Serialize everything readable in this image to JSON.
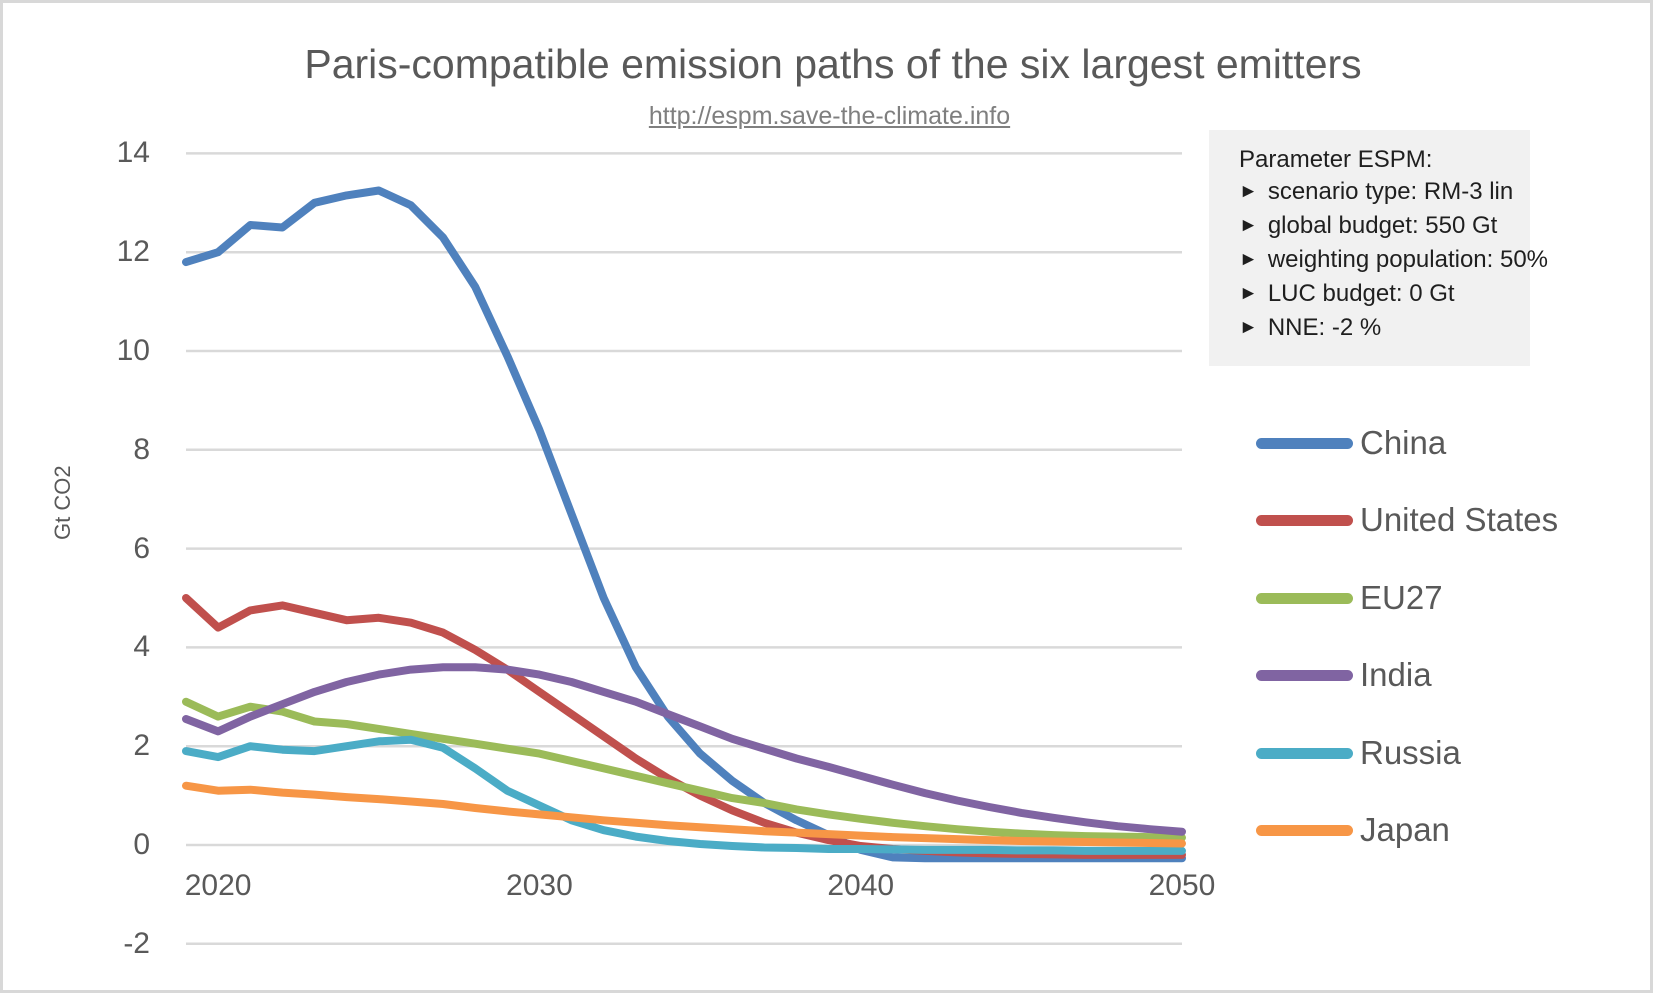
{
  "window": {
    "background": "#ffffff",
    "border_color": "#d8d8d8",
    "text_color": "#595959"
  },
  "header": {
    "title": "Paris-compatible emission paths of the six largest emitters",
    "subtitle_link": "http://espm.save-the-climate.info"
  },
  "parameter_box": {
    "background": "#f1f1f1",
    "bullet": "►",
    "title": "Parameter ESPM:",
    "items": [
      "scenario type: RM-3 lin",
      "global budget: 550 Gt",
      "weighting population: 50%",
      "LUC budget: 0 Gt",
      "NNE: -2 %"
    ]
  },
  "chart_data": {
    "type": "line",
    "title": "Paris-compatible emission paths of the six largest emitters",
    "xlabel": "",
    "ylabel": "Gt CO2",
    "x": [
      2019,
      2020,
      2021,
      2022,
      2023,
      2024,
      2025,
      2026,
      2027,
      2028,
      2029,
      2030,
      2031,
      2032,
      2033,
      2034,
      2035,
      2036,
      2037,
      2038,
      2039,
      2040,
      2041,
      2042,
      2043,
      2044,
      2045,
      2046,
      2047,
      2048,
      2049,
      2050
    ],
    "x_ticks": [
      2020,
      2030,
      2040,
      2050
    ],
    "y_ticks": [
      14,
      12,
      10,
      8,
      6,
      4,
      2,
      0,
      -2
    ],
    "ylim": [
      -2,
      14
    ],
    "xlim": [
      2019,
      2050
    ],
    "grid": "horizontal",
    "gridline_color": "#d9d9d9",
    "legend_position": "right",
    "series": [
      {
        "name": "China",
        "color": "#4F81BD",
        "values": [
          11.8,
          12.0,
          12.55,
          12.5,
          13.0,
          13.15,
          13.25,
          12.95,
          12.3,
          11.3,
          9.9,
          8.4,
          6.7,
          5.0,
          3.6,
          2.6,
          1.85,
          1.3,
          0.85,
          0.5,
          0.2,
          -0.1,
          -0.25,
          -0.27,
          -0.27,
          -0.27,
          -0.27,
          -0.27,
          -0.27,
          -0.27,
          -0.27,
          -0.27
        ]
      },
      {
        "name": "United States",
        "color": "#C0504D",
        "values": [
          5.0,
          4.4,
          4.75,
          4.85,
          4.7,
          4.55,
          4.6,
          4.5,
          4.3,
          3.95,
          3.55,
          3.1,
          2.65,
          2.2,
          1.75,
          1.35,
          1.0,
          0.7,
          0.45,
          0.25,
          0.1,
          -0.02,
          -0.08,
          -0.12,
          -0.15,
          -0.17,
          -0.18,
          -0.19,
          -0.2,
          -0.2,
          -0.2,
          -0.2
        ]
      },
      {
        "name": "EU27",
        "color": "#9BBB59",
        "values": [
          2.9,
          2.6,
          2.8,
          2.7,
          2.5,
          2.45,
          2.35,
          2.25,
          2.15,
          2.05,
          1.95,
          1.85,
          1.7,
          1.55,
          1.4,
          1.25,
          1.1,
          0.95,
          0.85,
          0.72,
          0.62,
          0.53,
          0.45,
          0.38,
          0.32,
          0.27,
          0.23,
          0.2,
          0.18,
          0.17,
          0.16,
          0.15
        ]
      },
      {
        "name": "India",
        "color": "#8064A2",
        "values": [
          2.55,
          2.3,
          2.6,
          2.85,
          3.1,
          3.3,
          3.45,
          3.55,
          3.6,
          3.6,
          3.55,
          3.45,
          3.3,
          3.1,
          2.9,
          2.65,
          2.4,
          2.15,
          1.95,
          1.75,
          1.58,
          1.4,
          1.22,
          1.05,
          0.9,
          0.77,
          0.65,
          0.55,
          0.46,
          0.38,
          0.32,
          0.27
        ]
      },
      {
        "name": "Russia",
        "color": "#4BACC6",
        "values": [
          1.9,
          1.78,
          2.0,
          1.93,
          1.9,
          2.0,
          2.1,
          2.13,
          1.97,
          1.55,
          1.1,
          0.8,
          0.5,
          0.3,
          0.17,
          0.08,
          0.02,
          -0.02,
          -0.05,
          -0.06,
          -0.08,
          -0.08,
          -0.09,
          -0.1,
          -0.1,
          -0.1,
          -0.11,
          -0.11,
          -0.12,
          -0.12,
          -0.12,
          -0.12
        ]
      },
      {
        "name": "Japan",
        "color": "#F79646",
        "values": [
          1.2,
          1.1,
          1.12,
          1.06,
          1.02,
          0.97,
          0.93,
          0.88,
          0.83,
          0.75,
          0.68,
          0.62,
          0.56,
          0.5,
          0.45,
          0.4,
          0.36,
          0.32,
          0.28,
          0.25,
          0.22,
          0.19,
          0.16,
          0.14,
          0.12,
          0.1,
          0.08,
          0.07,
          0.06,
          0.05,
          0.04,
          0.03
        ]
      }
    ]
  }
}
